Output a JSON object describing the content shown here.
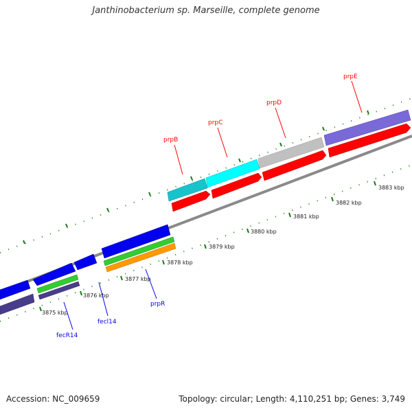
{
  "title": "Janthinobacterium sp. Marseille, complete genome",
  "accession": "Accession: NC_009659",
  "summary": "Topology: circular; Length: 4,110,251 bp; Genes: 3,749",
  "ticks": [
    "3875 kbp",
    "3876 kbp",
    "3877 kbp",
    "3878 kbp",
    "3879 kbp",
    "3880 kbp",
    "3881 kbp",
    "3882 kbp",
    "3883 kbp"
  ],
  "genes": {
    "prpB": "prpB",
    "prpC": "prpC",
    "prpD": "prpD",
    "prpE": "prpE",
    "prpR": "prpR",
    "fecl14": "fecl14",
    "fecR14": "fecR14"
  },
  "colors": {
    "forward": "#ff0000",
    "reverse": "#0000ee",
    "backbone": "#8a8a8a",
    "ticks": "#1a7a1a",
    "cyan": "#19d6e0",
    "gray": "#c0c0c0",
    "purple": "#6a5acd",
    "green": "#33cc33",
    "orange": "#ff9900",
    "darkslate": "#483d8b"
  }
}
